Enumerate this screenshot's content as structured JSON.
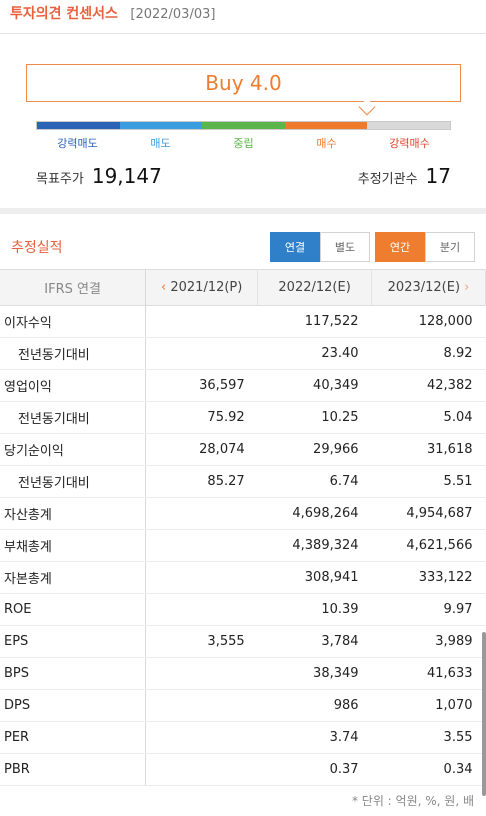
{
  "header": {
    "title": "투자의견 컨센서스",
    "date": "[2022/03/03]"
  },
  "consensus": {
    "opinion": "Buy 4.0",
    "scale": [
      {
        "label": "강력매도",
        "color": "#2b63b6"
      },
      {
        "label": "매도",
        "color": "#3a9de0"
      },
      {
        "label": "중립",
        "color": "#5bb54a"
      },
      {
        "label": "매수",
        "color": "#f07a2c"
      },
      {
        "label": "강력매수",
        "color": "#d9d9d9",
        "text_color": "#e3432d"
      }
    ],
    "target_price_label": "목표주가",
    "target_price": "19,147",
    "analyst_count_label": "추정기관수",
    "analyst_count": "17"
  },
  "estimates": {
    "title": "추정실적",
    "basis_tabs": [
      "연결",
      "별도"
    ],
    "period_tabs": [
      "연간",
      "분기"
    ],
    "table": {
      "corner": "IFRS 연결",
      "columns": [
        "2021/12(P)",
        "2022/12(E)",
        "2023/12(E)"
      ],
      "rows": [
        {
          "label": "이자수익",
          "values": [
            "",
            "117,522",
            "128,000"
          ]
        },
        {
          "label": "전년동기대비",
          "values": [
            "",
            "23.40",
            "8.92"
          ]
        },
        {
          "label": "영업이익",
          "values": [
            "36,597",
            "40,349",
            "42,382"
          ]
        },
        {
          "label": "전년동기대비",
          "values": [
            "75.92",
            "10.25",
            "5.04"
          ]
        },
        {
          "label": "당기순이익",
          "values": [
            "28,074",
            "29,966",
            "31,618"
          ]
        },
        {
          "label": "전년동기대비",
          "values": [
            "85.27",
            "6.74",
            "5.51"
          ]
        },
        {
          "label": "자산총계",
          "values": [
            "",
            "4,698,264",
            "4,954,687"
          ]
        },
        {
          "label": "부채총계",
          "values": [
            "",
            "4,389,324",
            "4,621,566"
          ]
        },
        {
          "label": "자본총계",
          "values": [
            "",
            "308,941",
            "333,122"
          ]
        },
        {
          "label": "ROE",
          "values": [
            "",
            "10.39",
            "9.97"
          ]
        },
        {
          "label": "EPS",
          "values": [
            "3,555",
            "3,784",
            "3,989"
          ]
        },
        {
          "label": "BPS",
          "values": [
            "",
            "38,349",
            "41,633"
          ]
        },
        {
          "label": "DPS",
          "values": [
            "",
            "986",
            "1,070"
          ]
        },
        {
          "label": "PER",
          "values": [
            "",
            "3.74",
            "3.55"
          ]
        },
        {
          "label": "PBR",
          "values": [
            "",
            "0.37",
            "0.34"
          ]
        }
      ]
    },
    "unit_note": "* 단위 : 억원, %, 원, 배"
  },
  "icons": {
    "prev": "chevron-left-icon",
    "next": "chevron-right-icon"
  }
}
